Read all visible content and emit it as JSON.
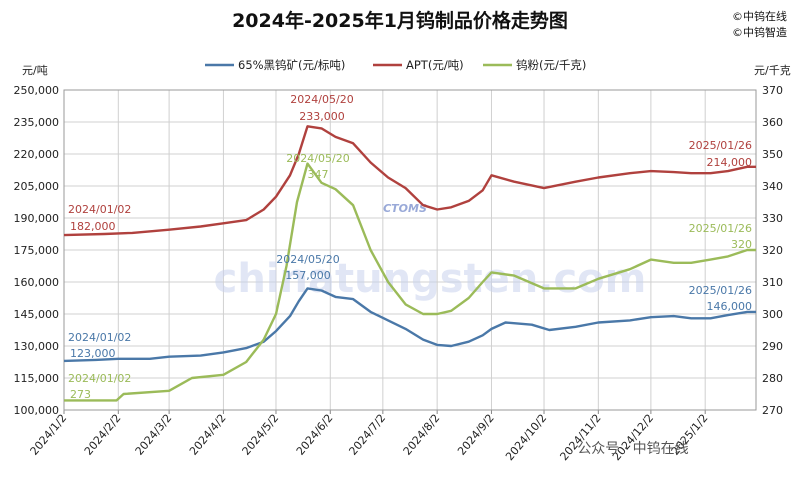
{
  "chart_data": {
    "type": "line",
    "title": "2024年-2025年1月钨制品价格走势图",
    "brand": [
      "©中钨在线",
      "©中钨智造"
    ],
    "left_axis": {
      "unit": "元/吨",
      "min": 100000,
      "max": 250000,
      "step": 15000,
      "ticks": [
        "100,000",
        "115,000",
        "130,000",
        "145,000",
        "160,000",
        "175,000",
        "190,000",
        "205,000",
        "220,000",
        "235,000",
        "250,000"
      ]
    },
    "right_axis": {
      "unit": "元/千克",
      "min": 270,
      "max": 370,
      "step": 10,
      "ticks": [
        "270",
        "280",
        "290",
        "300",
        "310",
        "320",
        "330",
        "340",
        "350",
        "360",
        "370"
      ]
    },
    "x_ticks": [
      "2024/1/2",
      "2024/2/2",
      "2024/3/2",
      "2024/4/2",
      "2024/5/2",
      "2024/6/2",
      "2024/7/2",
      "2024/8/2",
      "2024/9/2",
      "2024/10/2",
      "2024/11/2",
      "2024/12/2",
      "2025/1/2"
    ],
    "x_start": "2024-01-02",
    "x_end": "2025-01-31",
    "grid": true,
    "legend_position": "top",
    "series": [
      {
        "name": "65%黑钨矿(元/标吨)",
        "axis": "left",
        "color": "#4a78a8",
        "points": [
          [
            "2024-01-02",
            123000
          ],
          [
            "2024-01-20",
            123500
          ],
          [
            "2024-02-02",
            124000
          ],
          [
            "2024-02-20",
            124000
          ],
          [
            "2024-03-02",
            125000
          ],
          [
            "2024-03-20",
            125500
          ],
          [
            "2024-04-02",
            127000
          ],
          [
            "2024-04-15",
            129000
          ],
          [
            "2024-04-25",
            132000
          ],
          [
            "2024-05-02",
            137000
          ],
          [
            "2024-05-10",
            144000
          ],
          [
            "2024-05-15",
            151000
          ],
          [
            "2024-05-20",
            157000
          ],
          [
            "2024-05-28",
            156000
          ],
          [
            "2024-06-05",
            153000
          ],
          [
            "2024-06-15",
            152000
          ],
          [
            "2024-06-25",
            146000
          ],
          [
            "2024-07-05",
            142000
          ],
          [
            "2024-07-15",
            138000
          ],
          [
            "2024-07-25",
            133000
          ],
          [
            "2024-08-02",
            130500
          ],
          [
            "2024-08-10",
            130000
          ],
          [
            "2024-08-20",
            132000
          ],
          [
            "2024-08-28",
            135000
          ],
          [
            "2024-09-02",
            138000
          ],
          [
            "2024-09-10",
            141000
          ],
          [
            "2024-09-25",
            140000
          ],
          [
            "2024-10-05",
            137500
          ],
          [
            "2024-10-20",
            139000
          ],
          [
            "2024-11-02",
            141000
          ],
          [
            "2024-11-20",
            142000
          ],
          [
            "2024-12-02",
            143500
          ],
          [
            "2024-12-15",
            144000
          ],
          [
            "2024-12-25",
            143000
          ],
          [
            "2025-01-05",
            143000
          ],
          [
            "2025-01-15",
            144500
          ],
          [
            "2025-01-26",
            146000
          ],
          [
            "2025-01-31",
            146000
          ]
        ],
        "annotations": [
          {
            "date": "2024/01/02",
            "value": "123,000"
          },
          {
            "date": "2024/05/20",
            "value": "157,000"
          },
          {
            "date": "2025/01/26",
            "value": "146,000"
          }
        ]
      },
      {
        "name": "APT(元/吨)",
        "axis": "left",
        "color": "#b0413e",
        "points": [
          [
            "2024-01-02",
            182000
          ],
          [
            "2024-01-25",
            182500
          ],
          [
            "2024-02-10",
            183000
          ],
          [
            "2024-03-02",
            184500
          ],
          [
            "2024-03-20",
            186000
          ],
          [
            "2024-04-02",
            187500
          ],
          [
            "2024-04-15",
            189000
          ],
          [
            "2024-04-25",
            194000
          ],
          [
            "2024-05-02",
            200000
          ],
          [
            "2024-05-10",
            210000
          ],
          [
            "2024-05-15",
            220000
          ],
          [
            "2024-05-20",
            233000
          ],
          [
            "2024-05-28",
            232000
          ],
          [
            "2024-06-05",
            228000
          ],
          [
            "2024-06-15",
            225000
          ],
          [
            "2024-06-25",
            216000
          ],
          [
            "2024-07-05",
            209000
          ],
          [
            "2024-07-15",
            204000
          ],
          [
            "2024-07-25",
            196000
          ],
          [
            "2024-08-02",
            194000
          ],
          [
            "2024-08-10",
            195000
          ],
          [
            "2024-08-20",
            198000
          ],
          [
            "2024-08-28",
            203000
          ],
          [
            "2024-09-02",
            210000
          ],
          [
            "2024-09-15",
            207000
          ],
          [
            "2024-10-02",
            204000
          ],
          [
            "2024-10-20",
            207000
          ],
          [
            "2024-11-02",
            209000
          ],
          [
            "2024-11-20",
            211000
          ],
          [
            "2024-12-02",
            212000
          ],
          [
            "2024-12-15",
            211500
          ],
          [
            "2024-12-25",
            211000
          ],
          [
            "2025-01-05",
            211000
          ],
          [
            "2025-01-15",
            212000
          ],
          [
            "2025-01-26",
            214000
          ],
          [
            "2025-01-31",
            214000
          ]
        ],
        "annotations": [
          {
            "date": "2024/01/02",
            "value": "182,000"
          },
          {
            "date": "2024/05/20",
            "value": "233,000"
          },
          {
            "date": "2025/01/26",
            "value": "214,000"
          }
        ]
      },
      {
        "name": "钨粉(元/千克)",
        "axis": "right",
        "color": "#9bbb59",
        "points": [
          [
            "2024-01-02",
            273
          ],
          [
            "2024-02-01",
            273
          ],
          [
            "2024-02-05",
            275
          ],
          [
            "2024-03-02",
            276
          ],
          [
            "2024-03-15",
            280
          ],
          [
            "2024-04-02",
            281
          ],
          [
            "2024-04-15",
            285
          ],
          [
            "2024-04-25",
            292
          ],
          [
            "2024-05-02",
            300
          ],
          [
            "2024-05-08",
            315
          ],
          [
            "2024-05-14",
            335
          ],
          [
            "2024-05-20",
            347
          ],
          [
            "2024-05-28",
            341
          ],
          [
            "2024-06-05",
            339
          ],
          [
            "2024-06-15",
            334
          ],
          [
            "2024-06-25",
            320
          ],
          [
            "2024-07-05",
            310
          ],
          [
            "2024-07-15",
            303
          ],
          [
            "2024-07-25",
            300
          ],
          [
            "2024-08-02",
            300
          ],
          [
            "2024-08-10",
            301
          ],
          [
            "2024-08-20",
            305
          ],
          [
            "2024-08-28",
            310
          ],
          [
            "2024-09-02",
            313
          ],
          [
            "2024-09-15",
            312
          ],
          [
            "2024-10-02",
            308
          ],
          [
            "2024-10-20",
            308
          ],
          [
            "2024-11-02",
            311
          ],
          [
            "2024-11-20",
            314
          ],
          [
            "2024-12-02",
            317
          ],
          [
            "2024-12-15",
            316
          ],
          [
            "2024-12-25",
            316
          ],
          [
            "2025-01-05",
            317
          ],
          [
            "2025-01-15",
            318
          ],
          [
            "2025-01-26",
            320
          ],
          [
            "2025-01-31",
            320
          ]
        ],
        "annotations": [
          {
            "date": "2024/01/02",
            "value": "273"
          },
          {
            "date": "2024/05/20",
            "value": "347"
          },
          {
            "date": "2025/01/26",
            "value": "320"
          }
        ]
      }
    ]
  },
  "watermark": "chinatungsten.com",
  "logo_text": "CTOMS",
  "footer": "公众号 · 中钨在线"
}
